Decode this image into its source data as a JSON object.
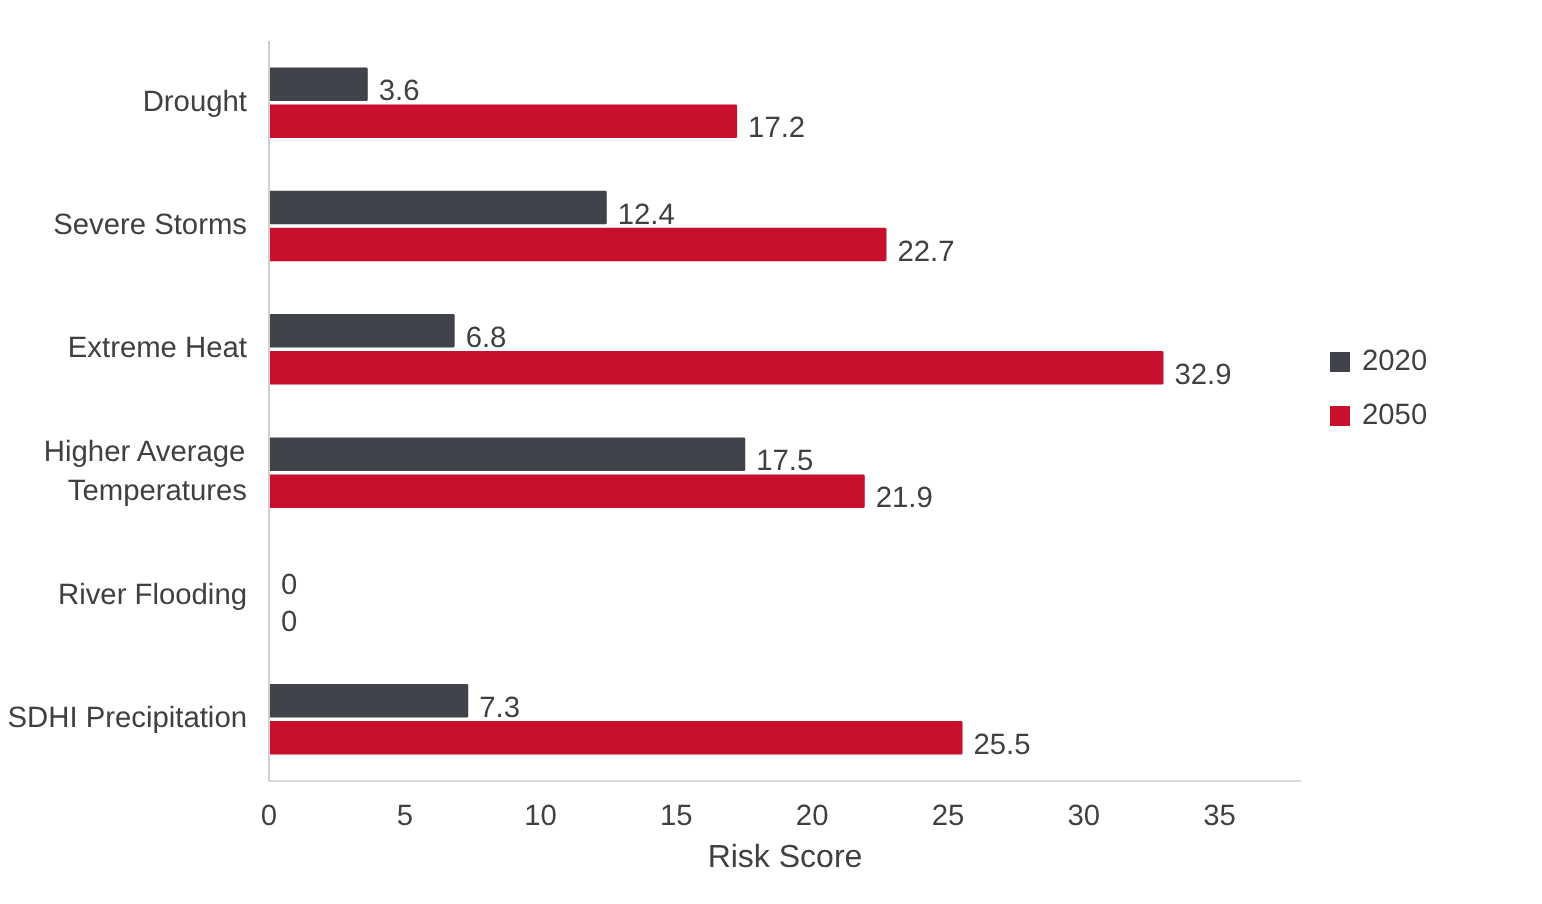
{
  "chart_data": {
    "type": "bar",
    "orientation": "horizontal",
    "xlabel": "Risk Score",
    "categories": [
      "Drought",
      "Severe Storms",
      "Extreme Heat",
      "Higher Average Temperatures",
      "River Flooding",
      "SDHI Precipitation"
    ],
    "series": [
      {
        "name": "2020",
        "color": "#404349",
        "values": [
          3.6,
          12.4,
          6.8,
          17.5,
          0,
          7.3
        ]
      },
      {
        "name": "2050",
        "color": "#c8102e",
        "values": [
          17.2,
          22.7,
          32.9,
          21.9,
          0,
          25.5
        ]
      }
    ],
    "xlim": [
      0,
      38
    ],
    "xticks": [
      0,
      5,
      10,
      15,
      20,
      25,
      30,
      35
    ],
    "data_labels": true,
    "grid": false,
    "legend": "right"
  }
}
